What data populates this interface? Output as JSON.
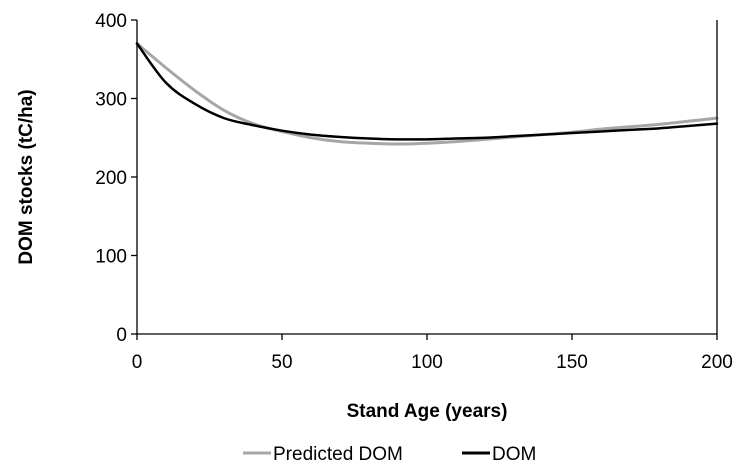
{
  "chart_data": {
    "type": "line",
    "title": "",
    "xlabel": "Stand Age (years)",
    "ylabel": "DOM stocks (tC/ha)",
    "xlim": [
      0,
      200
    ],
    "ylim": [
      0,
      400
    ],
    "xticks": [
      0,
      50,
      100,
      150,
      200
    ],
    "yticks": [
      0,
      100,
      200,
      300,
      400
    ],
    "xtick_labels": [
      "0",
      "50",
      "100",
      "150",
      "200"
    ],
    "ytick_labels": [
      "0",
      "100",
      "200",
      "300",
      "400"
    ],
    "grid": false,
    "legend_position": "bottom",
    "series": [
      {
        "name": "Predicted DOM",
        "color": "#a6a6a6",
        "x": [
          0,
          10,
          20,
          30,
          40,
          50,
          60,
          70,
          80,
          90,
          100,
          110,
          120,
          130,
          140,
          150,
          160,
          170,
          180,
          190,
          200
        ],
        "y": [
          370,
          339,
          310,
          285,
          268,
          258,
          250,
          245,
          243,
          242,
          243,
          245,
          248,
          251,
          254,
          257,
          261,
          264,
          267,
          271,
          275
        ]
      },
      {
        "name": "DOM",
        "color": "#000000",
        "x": [
          0,
          10,
          20,
          30,
          40,
          50,
          60,
          70,
          80,
          90,
          100,
          110,
          120,
          130,
          140,
          150,
          160,
          170,
          180,
          190,
          200
        ],
        "y": [
          370,
          320,
          293,
          275,
          266,
          259,
          254,
          251,
          249,
          248,
          248,
          249,
          250,
          252,
          254,
          256,
          258,
          260,
          262,
          265,
          268
        ]
      }
    ]
  }
}
